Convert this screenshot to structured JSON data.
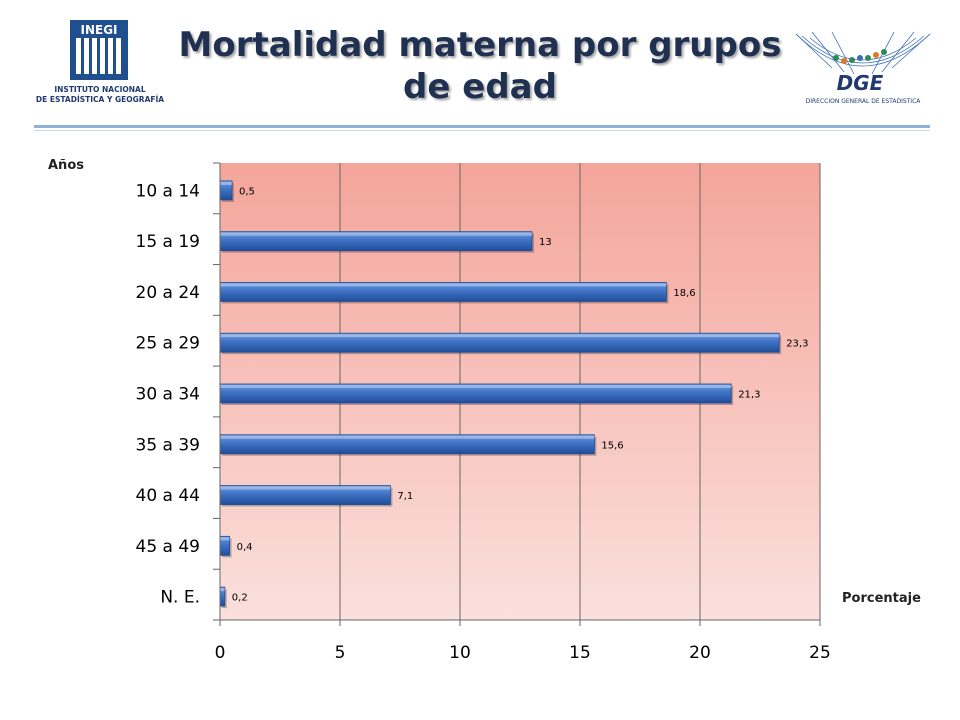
{
  "header": {
    "title_line1": "Mortalidad materna por grupos",
    "title_line2": "de edad",
    "left_logo_text": "INEGI",
    "left_logo_caption1": "INSTITUTO NACIONAL",
    "left_logo_caption2": "DE ESTADÍSTICA Y GEOGRAFÍA",
    "right_logo_text": "DGE",
    "right_logo_caption": "DIRECCION GENERAL DE ESTADISTICA"
  },
  "colors": {
    "bar": "#3f72c4",
    "bar_dark": "#1f4d99",
    "plot_top": "#f4a59a",
    "plot_bottom": "#fbe0dc",
    "title": "#1f3050"
  },
  "chart_data": {
    "type": "bar",
    "orientation": "horizontal",
    "title": "Mortalidad materna por grupos de edad",
    "ylabel": "Años",
    "xlabel": "Porcentaje",
    "categories": [
      "10 a 14",
      "15 a 19",
      "20 a 24",
      "25 a 29",
      "30 a 34",
      "35 a 39",
      "40 a 44",
      "45 a 49",
      "N. E."
    ],
    "values": [
      0.5,
      13,
      18.6,
      23.3,
      21.3,
      15.6,
      7.1,
      0.4,
      0.2
    ],
    "value_labels": [
      "0,5",
      "13",
      "18,6",
      "23,3",
      "21,3",
      "15,6",
      "7,1",
      "0,4",
      "0,2"
    ],
    "xlim": [
      0,
      25
    ],
    "xticks": [
      0,
      5,
      10,
      15,
      20,
      25
    ],
    "grid": "vertical",
    "legend": "none"
  }
}
